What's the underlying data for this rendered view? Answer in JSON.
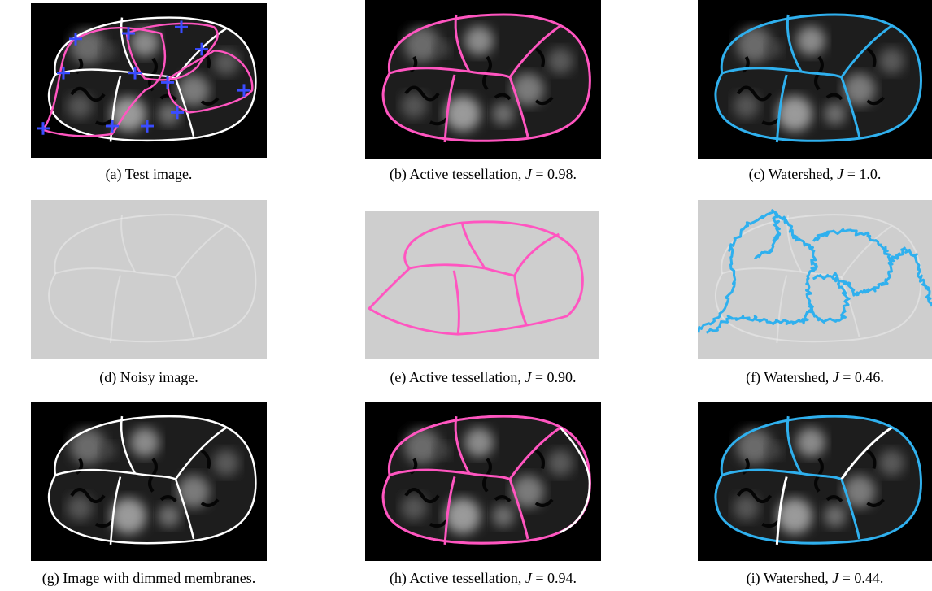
{
  "figure": {
    "panels": [
      {
        "id": "a",
        "caption_prefix": "(a) Test image.",
        "caption_math": "",
        "caption_suffix": "",
        "kind": "dark",
        "overlay": "pink-seeds"
      },
      {
        "id": "b",
        "caption_prefix": "(b) Active tessellation, ",
        "caption_math": "J",
        "caption_suffix": " = 0.98.",
        "kind": "dark",
        "overlay": "pink"
      },
      {
        "id": "c",
        "caption_prefix": "(c) Watershed, ",
        "caption_math": "J",
        "caption_suffix": " = 1.0.",
        "kind": "dark",
        "overlay": "blue"
      },
      {
        "id": "d",
        "caption_prefix": "(d) Noisy image.",
        "caption_math": "",
        "caption_suffix": "",
        "kind": "noisy",
        "overlay": "none"
      },
      {
        "id": "e",
        "caption_prefix": "(e) Active tessellation, ",
        "caption_math": "J",
        "caption_suffix": " = 0.90.",
        "kind": "noisy",
        "overlay": "pink"
      },
      {
        "id": "f",
        "caption_prefix": "(f) Watershed, ",
        "caption_math": "J",
        "caption_suffix": " = 0.46.",
        "kind": "noisy",
        "overlay": "blue-jagged"
      },
      {
        "id": "g",
        "caption_prefix": "(g) Image with dimmed membranes.",
        "caption_math": "",
        "caption_suffix": "",
        "kind": "dark",
        "overlay": "white"
      },
      {
        "id": "h",
        "caption_prefix": "(h) Active tessellation, ",
        "caption_math": "J",
        "caption_suffix": " = 0.94.",
        "kind": "dark",
        "overlay": "pink-partial"
      },
      {
        "id": "i",
        "caption_prefix": "(i) Watershed, ",
        "caption_math": "J",
        "caption_suffix": " = 0.44.",
        "kind": "dark",
        "overlay": "blue-partial"
      }
    ],
    "colors": {
      "pink": "#ff55c0",
      "blue": "#2fb0ee",
      "seed": "#3a4cff",
      "membrane": "#ffffff"
    }
  }
}
